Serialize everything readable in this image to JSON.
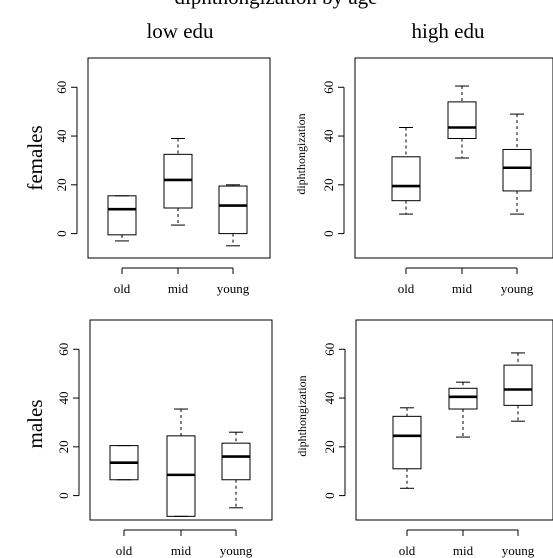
{
  "header": {
    "cut_text": "diphthongization by age",
    "columns": [
      "low edu",
      "high edu"
    ],
    "rows": [
      "females",
      "males"
    ]
  },
  "chart_data": [
    {
      "type": "boxplot",
      "row": "females",
      "column": "low edu",
      "categories": [
        "old",
        "mid",
        "young"
      ],
      "ylabel": "",
      "yticks": [
        0,
        20,
        40,
        60
      ],
      "ylim": [
        -10,
        72
      ],
      "boxes": [
        {
          "category": "old",
          "min": -3,
          "q1": -0.5,
          "median": 10,
          "q3": 15.5,
          "max": 15.5
        },
        {
          "category": "mid",
          "min": 3.5,
          "q1": 10.5,
          "median": 22,
          "q3": 32.5,
          "max": 39
        },
        {
          "category": "young",
          "min": -5,
          "q1": 0,
          "median": 11.5,
          "q3": 19.5,
          "max": 20
        }
      ]
    },
    {
      "type": "boxplot",
      "row": "females",
      "column": "high edu",
      "categories": [
        "old",
        "mid",
        "young"
      ],
      "ylabel": "diphthongization",
      "yticks": [
        0,
        20,
        40,
        60
      ],
      "ylim": [
        -10,
        72
      ],
      "boxes": [
        {
          "category": "old",
          "min": 8,
          "q1": 13.5,
          "median": 19.5,
          "q3": 31.5,
          "max": 43.5
        },
        {
          "category": "mid",
          "min": 31,
          "q1": 39,
          "median": 43.5,
          "q3": 54,
          "max": 60.5
        },
        {
          "category": "young",
          "min": 8,
          "q1": 17.5,
          "median": 27,
          "q3": 34.5,
          "max": 49
        }
      ]
    },
    {
      "type": "boxplot",
      "row": "males",
      "column": "low edu",
      "categories": [
        "old",
        "mid",
        "young"
      ],
      "ylabel": "",
      "yticks": [
        0,
        20,
        40,
        60
      ],
      "ylim": [
        -10,
        72
      ],
      "boxes": [
        {
          "category": "old",
          "min": 6.5,
          "q1": 6.5,
          "median": 13.5,
          "q3": 20.5,
          "max": 20.5
        },
        {
          "category": "mid",
          "min": -8.5,
          "q1": -8.5,
          "median": 8.5,
          "q3": 24.5,
          "max": 35.5
        },
        {
          "category": "young",
          "min": -5,
          "q1": 6.5,
          "median": 16,
          "q3": 21.5,
          "max": 26
        }
      ]
    },
    {
      "type": "boxplot",
      "row": "males",
      "column": "high edu",
      "categories": [
        "old",
        "mid",
        "young"
      ],
      "ylabel": "diphthongization",
      "yticks": [
        0,
        20,
        40,
        60
      ],
      "ylim": [
        -10,
        72
      ],
      "boxes": [
        {
          "category": "old",
          "min": 3,
          "q1": 11,
          "median": 24.5,
          "q3": 32.5,
          "max": 36
        },
        {
          "category": "mid",
          "min": 24,
          "q1": 35.5,
          "median": 40.5,
          "q3": 44,
          "max": 46.5
        },
        {
          "category": "young",
          "min": 30.5,
          "q1": 37,
          "median": 43.5,
          "q3": 53.5,
          "max": 58.5
        }
      ]
    }
  ]
}
